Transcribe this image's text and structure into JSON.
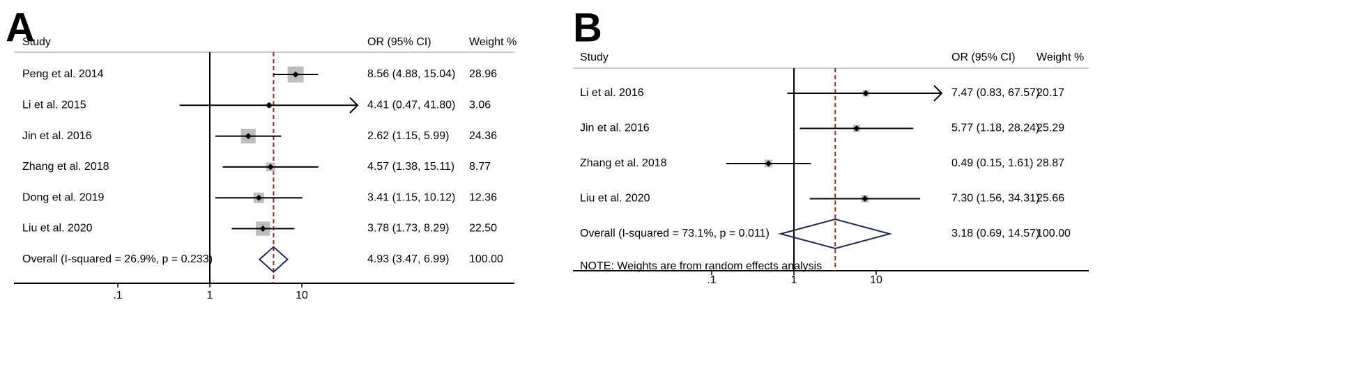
{
  "chart_data": [
    {
      "type": "forest",
      "panel": "A",
      "headers": {
        "study": "Study",
        "or": "OR (95% CI)",
        "weight": "Weight %"
      },
      "xscale": "log",
      "xticks": [
        ".1",
        "1",
        "10"
      ],
      "xtick_values": [
        0.1,
        1,
        10
      ],
      "reference_line": 1,
      "overall_line": 4.93,
      "studies": [
        {
          "name": "Peng et al. 2014",
          "or": 8.56,
          "lo": 4.88,
          "hi": 15.04,
          "ci_text": "8.56 (4.88, 15.04)",
          "weight": 28.96,
          "weight_text": "28.96",
          "arrow_right": false
        },
        {
          "name": "Li et al. 2015",
          "or": 4.41,
          "lo": 0.47,
          "hi": 41.8,
          "ci_text": "4.41 (0.47, 41.80)",
          "weight": 3.06,
          "weight_text": "3.06",
          "arrow_right": true
        },
        {
          "name": "Jin et al. 2016",
          "or": 2.62,
          "lo": 1.15,
          "hi": 5.99,
          "ci_text": "2.62 (1.15, 5.99)",
          "weight": 24.36,
          "weight_text": "24.36",
          "arrow_right": false
        },
        {
          "name": "Zhang et al. 2018",
          "or": 4.57,
          "lo": 1.38,
          "hi": 15.11,
          "ci_text": "4.57 (1.38, 15.11)",
          "weight": 8.77,
          "weight_text": "8.77",
          "arrow_right": false
        },
        {
          "name": "Dong et al. 2019",
          "or": 3.41,
          "lo": 1.15,
          "hi": 10.12,
          "ci_text": "3.41 (1.15, 10.12)",
          "weight": 12.36,
          "weight_text": "12.36",
          "arrow_right": false
        },
        {
          "name": "Liu et al. 2020",
          "or": 3.78,
          "lo": 1.73,
          "hi": 8.29,
          "ci_text": "3.78 (1.73, 8.29)",
          "weight": 22.5,
          "weight_text": "22.50",
          "arrow_right": false
        }
      ],
      "overall": {
        "label": "Overall  (I-squared = 26.9%, p = 0.233)",
        "or": 4.93,
        "lo": 3.47,
        "hi": 6.99,
        "ci_text": "4.93 (3.47, 6.99)",
        "weight_text": "100.00"
      },
      "note": ""
    },
    {
      "type": "forest",
      "panel": "B",
      "headers": {
        "study": "Study",
        "or": "OR (95% CI)",
        "weight": "Weight %"
      },
      "xscale": "log",
      "xticks": [
        ".1",
        "1",
        "10"
      ],
      "xtick_values": [
        0.1,
        1,
        10
      ],
      "reference_line": 1,
      "overall_line": 3.18,
      "studies": [
        {
          "name": "Li et al. 2016",
          "or": 7.47,
          "lo": 0.83,
          "hi": 67.57,
          "ci_text": "7.47 (0.83, 67.57)",
          "weight": 20.17,
          "weight_text": "20.17",
          "arrow_right": true
        },
        {
          "name": "Jin et al. 2016",
          "or": 5.77,
          "lo": 1.18,
          "hi": 28.24,
          "ci_text": "5.77 (1.18, 28.24)",
          "weight": 25.29,
          "weight_text": "25.29",
          "arrow_right": false
        },
        {
          "name": "Zhang et al. 2018",
          "or": 0.49,
          "lo": 0.15,
          "hi": 1.61,
          "ci_text": "0.49 (0.15, 1.61)",
          "weight": 28.87,
          "weight_text": "28.87",
          "arrow_right": false
        },
        {
          "name": "Liu et al. 2020",
          "or": 7.3,
          "lo": 1.56,
          "hi": 34.31,
          "ci_text": "7.30 (1.56, 34.31)",
          "weight": 25.66,
          "weight_text": "25.66",
          "arrow_right": false
        }
      ],
      "overall": {
        "label": "Overall  (I-squared = 73.1%, p = 0.011)",
        "or": 3.18,
        "lo": 0.69,
        "hi": 14.57,
        "ci_text": "3.18 (0.69, 14.57)",
        "weight_text": "100.00"
      },
      "note": "NOTE: Weights are from random effects analysis"
    }
  ],
  "colors": {
    "line": "#000000",
    "box": "#bdbdbd",
    "overall_line": "#a3242b",
    "diamond": "#1f2a55",
    "separator": "#c8c8c8"
  }
}
